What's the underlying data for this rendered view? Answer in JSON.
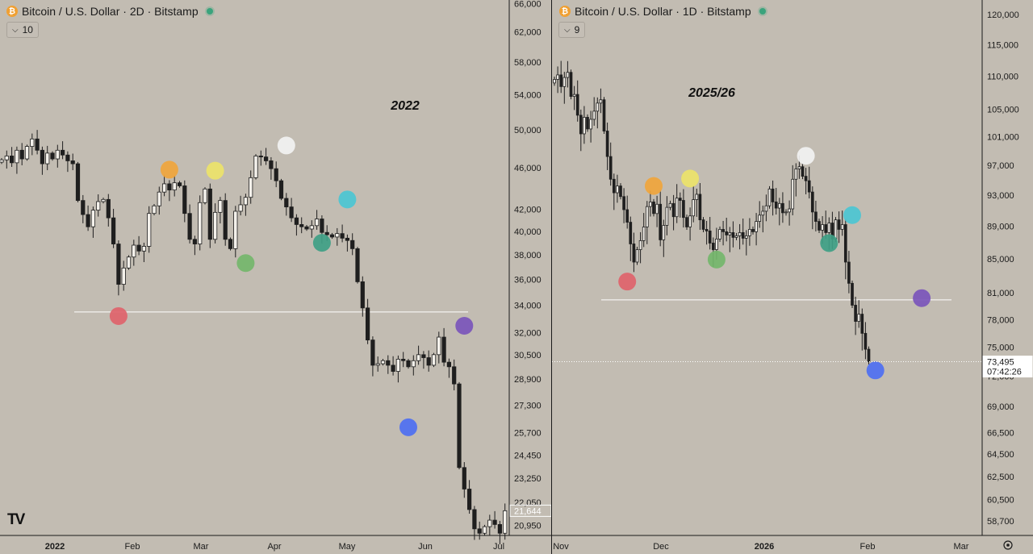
{
  "left": {
    "header": {
      "title": "Bitcoin / U.S. Dollar · 2D · Bitstamp",
      "indicator": "10"
    },
    "logo": "TV",
    "chart_data": {
      "type": "candlestick",
      "title": "2022",
      "scale": "log",
      "ylim": [
        20500,
        66500
      ],
      "y_ticks": [
        "66,000",
        "62,000",
        "58,000",
        "54,000",
        "50,000",
        "46,000",
        "42,000",
        "40,000",
        "38,000",
        "36,000",
        "34,000",
        "32,000",
        "30,500",
        "28,900",
        "27,300",
        "25,700",
        "24,450",
        "23,250",
        "22,050",
        "20,950"
      ],
      "x_ticks": [
        "2022",
        "Feb",
        "Mar",
        "Apr",
        "May",
        "Jun",
        "Jul"
      ],
      "last_price": "21,644",
      "horizontal_line": 33500,
      "closes": [
        46800,
        47200,
        46500,
        47800,
        46900,
        48200,
        49000,
        47800,
        46400,
        47500,
        46900,
        47800,
        47300,
        46700,
        46400,
        42800,
        41500,
        40400,
        41900,
        42700,
        42900,
        41200,
        38900,
        35600,
        36900,
        37800,
        38800,
        38300,
        38700,
        41600,
        42300,
        43600,
        44400,
        43800,
        44500,
        44200,
        41600,
        39300,
        38900,
        42600,
        43900,
        39300,
        41700,
        42800,
        39300,
        38500,
        41800,
        42400,
        43100,
        45000,
        47200,
        47100,
        46700,
        45900,
        44700,
        43000,
        42200,
        41200,
        40600,
        40400,
        40200,
        40500,
        41100,
        39900,
        39700,
        39500,
        39800,
        39400,
        39200,
        38500,
        35800,
        33800,
        31500,
        29800,
        29900,
        30100,
        29800,
        29400,
        30200,
        30100,
        29700,
        30100,
        30500,
        30300,
        29800,
        30500,
        31700,
        30000,
        29700,
        28600,
        23800,
        22700,
        21700,
        20800,
        20600,
        20900,
        21200,
        21000,
        20600,
        21644
      ],
      "markers": [
        {
          "label": "red",
          "color": "#e0636b",
          "index": 23,
          "price": 33200
        },
        {
          "label": "orange",
          "color": "#f0a53c",
          "index": 33,
          "price": 45800
        },
        {
          "label": "yellow",
          "color": "#ede36a",
          "index": 42,
          "price": 45700
        },
        {
          "label": "light green",
          "color": "#74b66b",
          "index": 48,
          "price": 37300
        },
        {
          "label": "white",
          "color": "#f2f2f2",
          "index": 56,
          "price": 48300
        },
        {
          "label": "teal",
          "color": "#3f9f86",
          "index": 63,
          "price": 39000
        },
        {
          "label": "cyan",
          "color": "#4cc6d3",
          "index": 68,
          "price": 42900
        },
        {
          "label": "blue",
          "color": "#4e6ff2",
          "index": 80,
          "price": 26000
        },
        {
          "label": "purple",
          "color": "#7b55bb",
          "index": 91,
          "price": 32500
        }
      ]
    }
  },
  "right": {
    "header": {
      "title": "Bitcoin / U.S. Dollar · 1D · Bitstamp",
      "indicator": "9"
    },
    "chart_data": {
      "type": "candlestick",
      "title": "2025/26",
      "scale": "log",
      "ylim": [
        57500,
        122500
      ],
      "y_ticks": [
        "120,000",
        "115,000",
        "110,000",
        "105,000",
        "101,000",
        "97,000",
        "93,000",
        "89,000",
        "85,000",
        "81,000",
        "78,000",
        "75,000",
        "72,000",
        "69,000",
        "66,500",
        "64,500",
        "62,500",
        "60,500",
        "58,700"
      ],
      "x_ticks": [
        "Nov",
        "Dec",
        "2026",
        "Feb",
        "Mar"
      ],
      "last_price": "73,495",
      "countdown": "07:42:26",
      "horizontal_line": 80200,
      "closes": [
        109500,
        110200,
        108400,
        109800,
        110600,
        106900,
        107200,
        104100,
        101400,
        103800,
        102100,
        103500,
        104700,
        105900,
        106400,
        101800,
        98200,
        95100,
        93300,
        94200,
        92800,
        91100,
        89500,
        86800,
        84600,
        86100,
        87200,
        88900,
        91500,
        92100,
        90600,
        91800,
        87300,
        89100,
        91400,
        91900,
        90200,
        92600,
        92300,
        90100,
        88900,
        90300,
        92400,
        93100,
        89800,
        88600,
        88400,
        86900,
        86100,
        87400,
        88600,
        88300,
        87900,
        88200,
        87600,
        87800,
        88200,
        87500,
        87800,
        88600,
        88300,
        89600,
        90400,
        90900,
        91600,
        93800,
        92100,
        91300,
        91900,
        90700,
        90800,
        91200,
        95100,
        96500,
        96800,
        95500,
        94900,
        93400,
        90800,
        89600,
        88500,
        89200,
        88200,
        89400,
        87400,
        89800,
        88600,
        89200,
        84600,
        82100,
        79600,
        77800,
        78600,
        76500,
        74800,
        73495
      ],
      "markers": [
        {
          "label": "red",
          "color": "#e0636b",
          "index": 22,
          "price": 82300
        },
        {
          "label": "orange",
          "color": "#f0a53c",
          "index": 30,
          "price": 94200
        },
        {
          "label": "yellow",
          "color": "#ede36a",
          "index": 41,
          "price": 95200
        },
        {
          "label": "light green",
          "color": "#74b66b",
          "index": 49,
          "price": 84900
        },
        {
          "label": "white",
          "color": "#f2f2f2",
          "index": 76,
          "price": 98300
        },
        {
          "label": "teal",
          "color": "#3f9f86",
          "index": 83,
          "price": 86900
        },
        {
          "label": "cyan",
          "color": "#4cc6d3",
          "index": 90,
          "price": 90400
        },
        {
          "label": "blue",
          "color": "#4e6ff2",
          "index": 97,
          "price": 72600
        },
        {
          "label": "purple",
          "color": "#7b55bb",
          "index": 111,
          "price": 80400
        }
      ]
    }
  }
}
